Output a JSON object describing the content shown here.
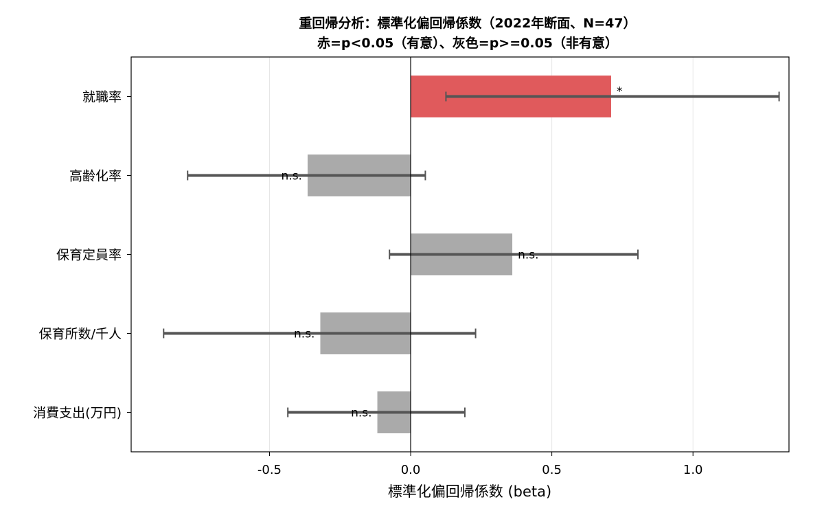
{
  "chart_data": {
    "type": "bar",
    "orientation": "horizontal",
    "title_lines": [
      "重回帰分析：標準化偏回帰係数（2022年断面、N=47）",
      "赤=p<0.05（有意）、灰色=p>=0.05（非有意）"
    ],
    "xlabel": "標準化偏回帰係数 (beta)",
    "ylabel": "",
    "xlim": [
      -0.99,
      1.34
    ],
    "xticks": [
      -0.5,
      0.0,
      0.5,
      1.0
    ],
    "xtick_labels": [
      "-0.5",
      "0.0",
      "0.5",
      "1.0"
    ],
    "grid": "x",
    "categories": [
      "就職率",
      "高齢化率",
      "保育定員率",
      "保育所数/千人",
      "消費支出(万円)"
    ],
    "values": [
      0.71,
      -0.365,
      0.36,
      -0.32,
      -0.118
    ],
    "ci_low": [
      0.125,
      -0.79,
      -0.075,
      -0.875,
      -0.435
    ],
    "ci_high": [
      1.305,
      0.052,
      0.805,
      0.23,
      0.192
    ],
    "significance": [
      "*",
      "n.s.",
      "n.s.",
      "n.s.",
      "n.s."
    ],
    "colors": {
      "significant": "#e05a5c",
      "not_significant": "#aaaaaa",
      "errorbar": "#555555",
      "grid": "#e6e6e6",
      "zero_line": "#000000"
    }
  }
}
